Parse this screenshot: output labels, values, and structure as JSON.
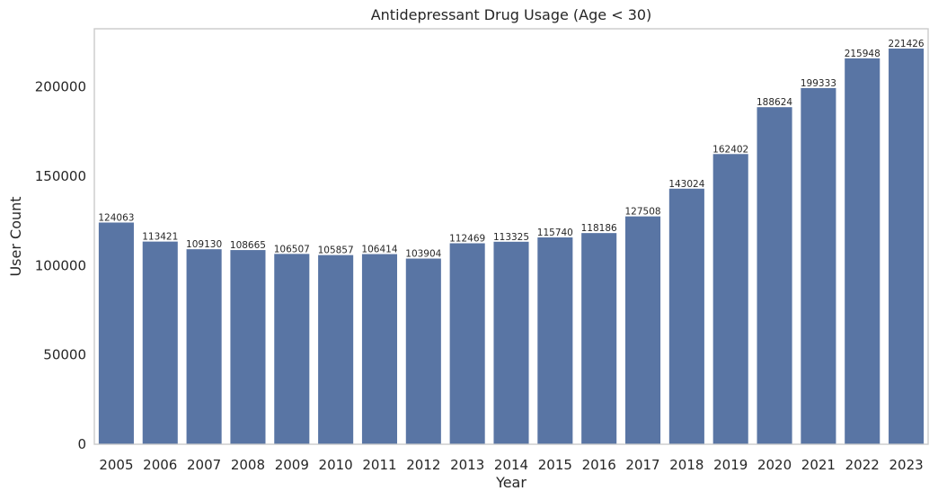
{
  "chart_data": {
    "type": "bar",
    "title": "Antidepressant Drug Usage (Age < 30)",
    "xlabel": "Year",
    "ylabel": "User Count",
    "categories": [
      "2005",
      "2006",
      "2007",
      "2008",
      "2009",
      "2010",
      "2011",
      "2012",
      "2013",
      "2014",
      "2015",
      "2016",
      "2017",
      "2018",
      "2019",
      "2020",
      "2021",
      "2022",
      "2023"
    ],
    "values": [
      124063,
      113421,
      109130,
      108665,
      106507,
      105857,
      106414,
      103904,
      112469,
      113325,
      115740,
      118186,
      127508,
      143024,
      162402,
      188624,
      199333,
      215948,
      221426
    ],
    "ylim": [
      0,
      232500
    ],
    "yticks": [
      0,
      50000,
      100000,
      150000,
      200000
    ],
    "grid": false,
    "bar_color": "#5975a4",
    "spine_color": "#cccccc"
  }
}
